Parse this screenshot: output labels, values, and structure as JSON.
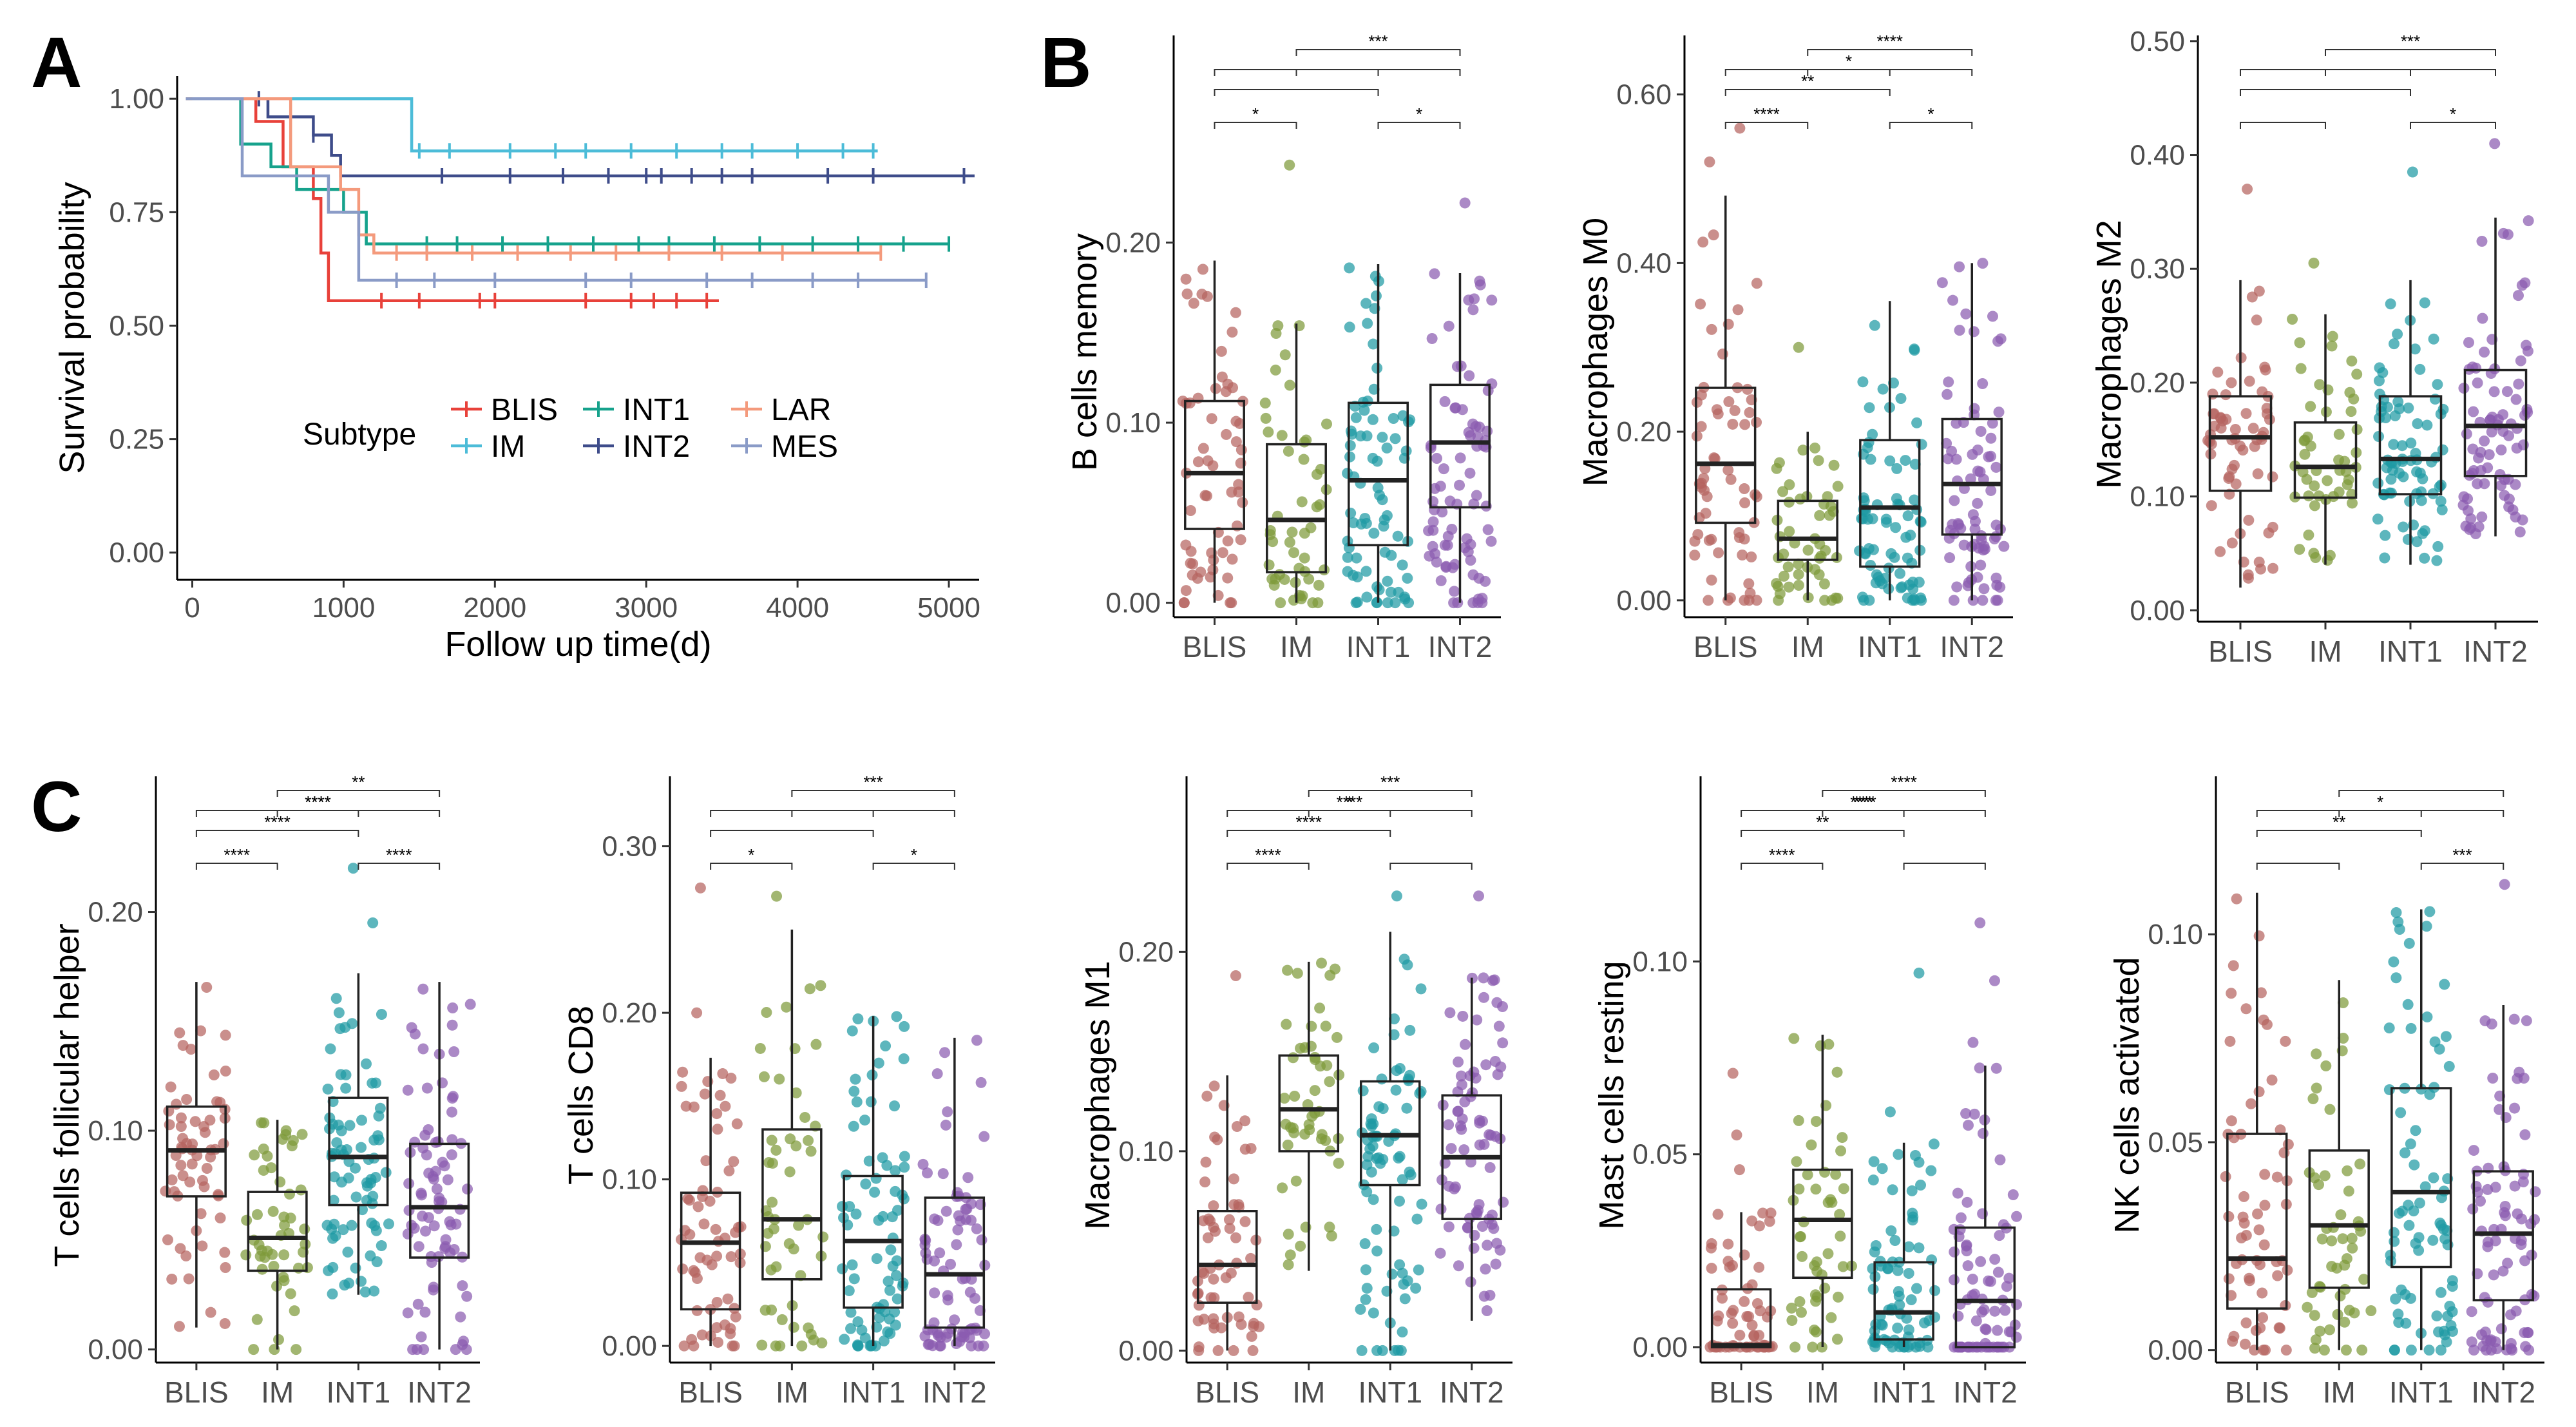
{
  "panels": {
    "A": "A",
    "B": "B",
    "C": "C"
  },
  "chart_data": [
    {
      "type": "line",
      "subtype": "kaplan-meier",
      "panel": "A",
      "xlabel": "Follow up time(d)",
      "ylabel": "Survival probability",
      "xlim": [
        -100,
        5200
      ],
      "ylim": [
        -0.06,
        1.05
      ],
      "xticks": [
        "0",
        "1000",
        "2000",
        "3000",
        "4000",
        "5000"
      ],
      "xtick_values": [
        0,
        1000,
        2000,
        3000,
        4000,
        5000
      ],
      "yticks": [
        "0.00",
        "0.25",
        "0.50",
        "0.75",
        "1.00"
      ],
      "ytick_values": [
        0,
        0.25,
        0.5,
        0.75,
        1.0
      ],
      "legend_title": "Subtype",
      "series": [
        {
          "name": "BLIS",
          "color": "#e8413a",
          "steps": [
            [
              0,
              1.0
            ],
            [
              420,
              0.95
            ],
            [
              600,
              0.85
            ],
            [
              800,
              0.78
            ],
            [
              850,
              0.66
            ],
            [
              900,
              0.555
            ],
            [
              3480,
              0.555
            ]
          ],
          "censors": [
            1250,
            1500,
            1900,
            2000,
            2600,
            2900,
            3050,
            3200,
            3400
          ]
        },
        {
          "name": "IM",
          "color": "#4cbcd8",
          "steps": [
            [
              0,
              1.0
            ],
            [
              1450,
              0.885
            ],
            [
              4530,
              0.885
            ]
          ],
          "censors": [
            1500,
            1700,
            2100,
            2400,
            2600,
            2900,
            3200,
            3500,
            3700,
            4000,
            4300,
            4500
          ]
        },
        {
          "name": "INT1",
          "color": "#16a28c",
          "steps": [
            [
              0,
              1.0
            ],
            [
              320,
              0.9
            ],
            [
              520,
              0.85
            ],
            [
              690,
              0.8
            ],
            [
              1000,
              0.75
            ],
            [
              1150,
              0.68
            ],
            [
              5000,
              0.68
            ]
          ],
          "censors": [
            1200,
            1550,
            1750,
            2050,
            2350,
            2650,
            2950,
            3150,
            3450,
            3750,
            4100,
            4400,
            4700,
            5000
          ]
        },
        {
          "name": "INT2",
          "color": "#3e4c8a",
          "steps": [
            [
              0,
              1.0
            ],
            [
              500,
              0.96
            ],
            [
              800,
              0.92
            ],
            [
              920,
              0.875
            ],
            [
              980,
              0.83
            ],
            [
              5170,
              0.83
            ]
          ],
          "censors": [
            440,
            800,
            1650,
            2100,
            2450,
            2750,
            3000,
            3100,
            3300,
            3500,
            3700,
            4200,
            4500,
            5100
          ]
        },
        {
          "name": "LAR",
          "color": "#f49a7c",
          "steps": [
            [
              0,
              1.0
            ],
            [
              650,
              0.85
            ],
            [
              980,
              0.8
            ],
            [
              1100,
              0.7
            ],
            [
              1200,
              0.66
            ],
            [
              4550,
              0.66
            ]
          ],
          "censors": [
            1350,
            1550,
            1850,
            2150,
            2500,
            2800,
            3150,
            3500,
            3900,
            4550
          ]
        },
        {
          "name": "MES",
          "color": "#8a9bc7",
          "steps": [
            [
              0,
              1.0
            ],
            [
              330,
              0.83
            ],
            [
              900,
              0.75
            ],
            [
              1100,
              0.6
            ],
            [
              4850,
              0.6
            ]
          ],
          "censors": [
            1350,
            1600,
            2000,
            2600,
            2900,
            3400,
            3700,
            4100,
            4400,
            4850
          ]
        }
      ]
    },
    {
      "type": "box",
      "panel": "B",
      "ylabel": "B cells memory",
      "categories": [
        "BLIS",
        "IM",
        "INT1",
        "INT2"
      ],
      "ylim": [
        -0.008,
        0.315
      ],
      "yticks": [
        "0.00",
        "0.10",
        "0.20"
      ],
      "ytick_values": [
        0,
        0.1,
        0.2
      ],
      "boxes": [
        {
          "q1": 0.041,
          "median": 0.072,
          "q3": 0.112,
          "low": 0,
          "high": 0.19,
          "n": 62
        },
        {
          "q1": 0.017,
          "median": 0.046,
          "q3": 0.088,
          "low": 0,
          "high": 0.155,
          "n": 50
        },
        {
          "q1": 0.032,
          "median": 0.068,
          "q3": 0.111,
          "low": 0,
          "high": 0.188,
          "n": 78
        },
        {
          "q1": 0.053,
          "median": 0.089,
          "q3": 0.121,
          "low": 0,
          "high": 0.183,
          "n": 80
        }
      ],
      "outliers": [
        [],
        [
          0.243
        ],
        [],
        [
          0.222
        ]
      ],
      "significance": [
        {
          "a": 1,
          "b": 2,
          "label": "*"
        },
        {
          "a": 3,
          "b": 4,
          "label": "*"
        },
        {
          "a": 1,
          "b": 3,
          "label": ""
        },
        {
          "a": 1,
          "b": 4,
          "label": ""
        },
        {
          "a": 2,
          "b": 3,
          "label": ""
        },
        {
          "a": 2,
          "b": 4,
          "label": "***"
        }
      ]
    },
    {
      "type": "box",
      "panel": "B",
      "ylabel": "Macrophages M0",
      "categories": [
        "BLIS",
        "IM",
        "INT1",
        "INT2"
      ],
      "ylim": [
        -0.02,
        0.67
      ],
      "yticks": [
        "0.00",
        "0.20",
        "0.40",
        "0.60"
      ],
      "ytick_values": [
        0,
        0.2,
        0.4,
        0.6
      ],
      "boxes": [
        {
          "q1": 0.092,
          "median": 0.162,
          "q3": 0.252,
          "low": 0,
          "high": 0.48,
          "n": 62
        },
        {
          "q1": 0.048,
          "median": 0.073,
          "q3": 0.118,
          "low": 0,
          "high": 0.2,
          "n": 50
        },
        {
          "q1": 0.04,
          "median": 0.11,
          "q3": 0.19,
          "low": 0,
          "high": 0.355,
          "n": 78
        },
        {
          "q1": 0.078,
          "median": 0.138,
          "q3": 0.215,
          "low": 0,
          "high": 0.4,
          "n": 80
        }
      ],
      "outliers": [
        [
          0.52,
          0.56
        ],
        [
          0.3
        ],
        [],
        []
      ],
      "significance": [
        {
          "a": 1,
          "b": 2,
          "label": "****"
        },
        {
          "a": 3,
          "b": 4,
          "label": "*"
        },
        {
          "a": 1,
          "b": 3,
          "label": "**"
        },
        {
          "a": 1,
          "b": 4,
          "label": ""
        },
        {
          "a": 2,
          "b": 3,
          "label": "*"
        },
        {
          "a": 2,
          "b": 4,
          "label": "****"
        }
      ]
    },
    {
      "type": "box",
      "panel": "B",
      "ylabel": "Macrophages M2",
      "categories": [
        "BLIS",
        "IM",
        "INT1",
        "INT2"
      ],
      "ylim": [
        -0.01,
        0.505
      ],
      "yticks": [
        "0.00",
        "0.10",
        "0.20",
        "0.30",
        "0.40",
        "0.50"
      ],
      "ytick_values": [
        0,
        0.1,
        0.2,
        0.3,
        0.4,
        0.5
      ],
      "boxes": [
        {
          "q1": 0.105,
          "median": 0.152,
          "q3": 0.188,
          "low": 0.02,
          "high": 0.29,
          "n": 62
        },
        {
          "q1": 0.099,
          "median": 0.126,
          "q3": 0.165,
          "low": 0.04,
          "high": 0.26,
          "n": 50
        },
        {
          "q1": 0.102,
          "median": 0.133,
          "q3": 0.188,
          "low": 0.04,
          "high": 0.29,
          "n": 78
        },
        {
          "q1": 0.118,
          "median": 0.162,
          "q3": 0.211,
          "low": 0.065,
          "high": 0.345,
          "n": 80
        }
      ],
      "outliers": [
        [
          0.37
        ],
        [
          0.305
        ],
        [
          0.385
        ],
        [
          0.41
        ]
      ],
      "significance": [
        {
          "a": 1,
          "b": 2,
          "label": ""
        },
        {
          "a": 3,
          "b": 4,
          "label": "*"
        },
        {
          "a": 1,
          "b": 3,
          "label": ""
        },
        {
          "a": 1,
          "b": 4,
          "label": ""
        },
        {
          "a": 2,
          "b": 3,
          "label": ""
        },
        {
          "a": 2,
          "b": 4,
          "label": "***"
        }
      ]
    },
    {
      "type": "box",
      "panel": "C",
      "ylabel": "T cells follicular helper",
      "categories": [
        "BLIS",
        "IM",
        "INT1",
        "INT2"
      ],
      "ylim": [
        -0.006,
        0.262
      ],
      "yticks": [
        "0.00",
        "0.10",
        "0.20"
      ],
      "ytick_values": [
        0,
        0.1,
        0.2
      ],
      "boxes": [
        {
          "q1": 0.07,
          "median": 0.091,
          "q3": 0.111,
          "low": 0.01,
          "high": 0.168,
          "n": 62
        },
        {
          "q1": 0.036,
          "median": 0.051,
          "q3": 0.072,
          "low": 0.0,
          "high": 0.105,
          "n": 50
        },
        {
          "q1": 0.066,
          "median": 0.088,
          "q3": 0.115,
          "low": 0.025,
          "high": 0.172,
          "n": 78
        },
        {
          "q1": 0.042,
          "median": 0.065,
          "q3": 0.094,
          "low": 0.0,
          "high": 0.168,
          "n": 80
        }
      ],
      "outliers": [
        [],
        [],
        [
          0.195,
          0.22
        ],
        []
      ],
      "significance": [
        {
          "a": 1,
          "b": 2,
          "label": "****"
        },
        {
          "a": 3,
          "b": 4,
          "label": "****"
        },
        {
          "a": 1,
          "b": 3,
          "label": "****"
        },
        {
          "a": 1,
          "b": 4,
          "label": "****"
        },
        {
          "a": 2,
          "b": 3,
          "label": "****"
        },
        {
          "a": 2,
          "b": 4,
          "label": "**"
        }
      ]
    },
    {
      "type": "box",
      "panel": "C",
      "ylabel": "T cells CD8",
      "categories": [
        "BLIS",
        "IM",
        "INT1",
        "INT2"
      ],
      "ylim": [
        -0.01,
        0.342
      ],
      "yticks": [
        "0.00",
        "0.10",
        "0.20",
        "0.30"
      ],
      "ytick_values": [
        0,
        0.1,
        0.2,
        0.3
      ],
      "boxes": [
        {
          "q1": 0.022,
          "median": 0.062,
          "q3": 0.092,
          "low": 0,
          "high": 0.173,
          "n": 62
        },
        {
          "q1": 0.04,
          "median": 0.076,
          "q3": 0.13,
          "low": 0,
          "high": 0.25,
          "n": 50
        },
        {
          "q1": 0.023,
          "median": 0.063,
          "q3": 0.102,
          "low": 0,
          "high": 0.198,
          "n": 78
        },
        {
          "q1": 0.011,
          "median": 0.043,
          "q3": 0.089,
          "low": 0,
          "high": 0.185,
          "n": 80
        }
      ],
      "outliers": [
        [
          0.2,
          0.275
        ],
        [
          0.27
        ],
        [],
        []
      ],
      "significance": [
        {
          "a": 1,
          "b": 2,
          "label": "*"
        },
        {
          "a": 3,
          "b": 4,
          "label": "*"
        },
        {
          "a": 1,
          "b": 3,
          "label": ""
        },
        {
          "a": 1,
          "b": 4,
          "label": ""
        },
        {
          "a": 2,
          "b": 3,
          "label": ""
        },
        {
          "a": 2,
          "b": 4,
          "label": "***"
        }
      ]
    },
    {
      "type": "box",
      "panel": "C",
      "ylabel": "Macrophages M1",
      "categories": [
        "BLIS",
        "IM",
        "INT1",
        "INT2"
      ],
      "ylim": [
        -0.006,
        0.288
      ],
      "yticks": [
        "0.00",
        "0.10",
        "0.20"
      ],
      "ytick_values": [
        0,
        0.1,
        0.2
      ],
      "boxes": [
        {
          "q1": 0.024,
          "median": 0.043,
          "q3": 0.07,
          "low": 0,
          "high": 0.138,
          "n": 62
        },
        {
          "q1": 0.1,
          "median": 0.121,
          "q3": 0.148,
          "low": 0.04,
          "high": 0.195,
          "n": 50
        },
        {
          "q1": 0.083,
          "median": 0.108,
          "q3": 0.135,
          "low": 0.0,
          "high": 0.21,
          "n": 78
        },
        {
          "q1": 0.066,
          "median": 0.097,
          "q3": 0.128,
          "low": 0.015,
          "high": 0.187,
          "n": 80
        }
      ],
      "outliers": [
        [
          0.188
        ],
        [],
        [
          0.228
        ],
        [
          0.228
        ]
      ],
      "significance": [
        {
          "a": 1,
          "b": 2,
          "label": "****"
        },
        {
          "a": 3,
          "b": 4,
          "label": ""
        },
        {
          "a": 1,
          "b": 3,
          "label": "****"
        },
        {
          "a": 1,
          "b": 4,
          "label": "****"
        },
        {
          "a": 2,
          "b": 3,
          "label": "*"
        },
        {
          "a": 2,
          "b": 4,
          "label": "***"
        }
      ]
    },
    {
      "type": "box",
      "panel": "C",
      "ylabel": "Mast cells resting",
      "categories": [
        "BLIS",
        "IM",
        "INT1",
        "INT2"
      ],
      "ylim": [
        -0.004,
        0.148
      ],
      "yticks": [
        "0.00",
        "0.05",
        "0.10"
      ],
      "ytick_values": [
        0,
        0.05,
        0.1
      ],
      "boxes": [
        {
          "q1": 0.0,
          "median": 0.0005,
          "q3": 0.015,
          "low": 0,
          "high": 0.035,
          "n": 62
        },
        {
          "q1": 0.018,
          "median": 0.033,
          "q3": 0.046,
          "low": 0,
          "high": 0.081,
          "n": 50
        },
        {
          "q1": 0.002,
          "median": 0.009,
          "q3": 0.022,
          "low": 0,
          "high": 0.053,
          "n": 78
        },
        {
          "q1": 0.0,
          "median": 0.012,
          "q3": 0.031,
          "low": 0,
          "high": 0.073,
          "n": 80
        }
      ],
      "outliers": [
        [
          0.046,
          0.055,
          0.071
        ],
        [],
        [
          0.061,
          0.097
        ],
        [
          0.079,
          0.095,
          0.11
        ]
      ],
      "significance": [
        {
          "a": 1,
          "b": 2,
          "label": "****"
        },
        {
          "a": 3,
          "b": 4,
          "label": ""
        },
        {
          "a": 1,
          "b": 3,
          "label": "**"
        },
        {
          "a": 1,
          "b": 4,
          "label": "***"
        },
        {
          "a": 2,
          "b": 3,
          "label": "****"
        },
        {
          "a": 2,
          "b": 4,
          "label": "****"
        }
      ]
    },
    {
      "type": "box",
      "panel": "C",
      "ylabel": "NK cells activated",
      "categories": [
        "BLIS",
        "IM",
        "INT1",
        "INT2"
      ],
      "ylim": [
        -0.003,
        0.138
      ],
      "yticks": [
        "0.00",
        "0.05",
        "0.10"
      ],
      "ytick_values": [
        0,
        0.05,
        0.1
      ],
      "boxes": [
        {
          "q1": 0.01,
          "median": 0.022,
          "q3": 0.052,
          "low": 0,
          "high": 0.11,
          "n": 62
        },
        {
          "q1": 0.015,
          "median": 0.03,
          "q3": 0.048,
          "low": 0,
          "high": 0.089,
          "n": 50
        },
        {
          "q1": 0.02,
          "median": 0.038,
          "q3": 0.063,
          "low": 0,
          "high": 0.106,
          "n": 78
        },
        {
          "q1": 0.012,
          "median": 0.028,
          "q3": 0.043,
          "low": 0,
          "high": 0.083,
          "n": 80
        }
      ],
      "outliers": [
        [],
        [],
        [],
        [
          0.112
        ]
      ],
      "significance": [
        {
          "a": 1,
          "b": 2,
          "label": ""
        },
        {
          "a": 3,
          "b": 4,
          "label": "***"
        },
        {
          "a": 1,
          "b": 3,
          "label": "**"
        },
        {
          "a": 1,
          "b": 4,
          "label": ""
        },
        {
          "a": 2,
          "b": 3,
          "label": "*"
        },
        {
          "a": 2,
          "b": 4,
          "label": ""
        }
      ]
    }
  ],
  "colors": {
    "BLIS": "#b5645f",
    "IM": "#7e9a3a",
    "INT1": "#1f9aa3",
    "INT2": "#8b5cb0"
  }
}
